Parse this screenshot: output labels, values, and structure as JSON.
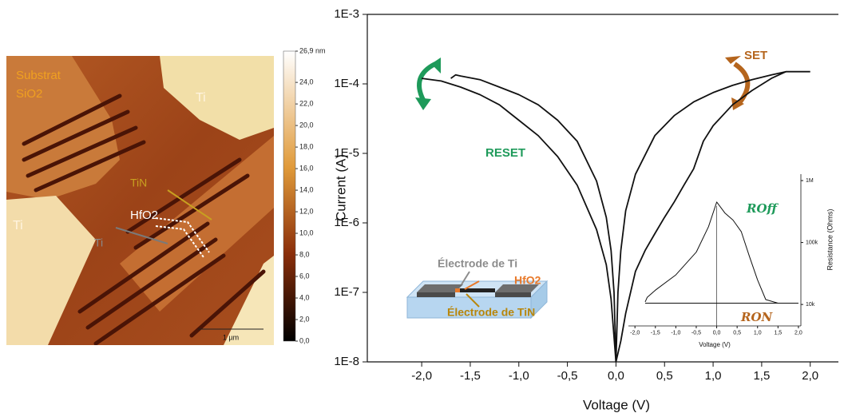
{
  "afm_image": {
    "labels": [
      {
        "text": "Substrat",
        "color": "#f0a020"
      },
      {
        "text": "SiO2",
        "color": "#f0a020"
      },
      {
        "text": "Ti",
        "color": "#fff4e0"
      },
      {
        "text": "Ti",
        "color": "#fff4e0"
      },
      {
        "text": "TiN",
        "color": "#c8a020"
      },
      {
        "text": "HfO2",
        "color": "#ffffff"
      },
      {
        "text": "Ti",
        "color": "#8a8a8a"
      }
    ],
    "scale_bar": "1 µm",
    "colorbar": {
      "lim": [
        0,
        26.9
      ],
      "ticks": [
        {
          "value": 26.9,
          "label": "26,9 nm"
        },
        {
          "value": 24,
          "label": "24,0"
        },
        {
          "value": 22,
          "label": "22,0"
        },
        {
          "value": 20,
          "label": "20,0"
        },
        {
          "value": 18,
          "label": "18,0"
        },
        {
          "value": 16,
          "label": "16,0"
        },
        {
          "value": 14,
          "label": "14,0"
        },
        {
          "value": 12,
          "label": "12,0"
        },
        {
          "value": 10,
          "label": "10,0"
        },
        {
          "value": 8,
          "label": "8,0"
        },
        {
          "value": 6,
          "label": "6,0"
        },
        {
          "value": 4,
          "label": "4,0"
        },
        {
          "value": 2,
          "label": "2,0"
        },
        {
          "value": 0,
          "label": "0,0"
        }
      ]
    }
  },
  "chart_data": [
    {
      "type": "line",
      "xlabel": "Voltage (V)",
      "ylabel": "Current (A)",
      "log_y": true,
      "xlim": [
        -2.56,
        2.29
      ],
      "ylim": [
        1e-08,
        0.001
      ],
      "xticks": [
        {
          "value": -2,
          "label": "-2,0"
        },
        {
          "value": -1.5,
          "label": "-1,5"
        },
        {
          "value": -1,
          "label": "-1,0"
        },
        {
          "value": -0.5,
          "label": "-0,5"
        },
        {
          "value": 0,
          "label": "0,0"
        },
        {
          "value": 0.5,
          "label": "0,5"
        },
        {
          "value": 1,
          "label": "1,0"
        },
        {
          "value": 1.5,
          "label": "1,5"
        },
        {
          "value": 2,
          "label": "2,0"
        }
      ],
      "yticks": [
        {
          "value": 1e-08,
          "label": "1E-8"
        },
        {
          "value": 1e-07,
          "label": "1E-7"
        },
        {
          "value": 1e-06,
          "label": "1E-6"
        },
        {
          "value": 1e-05,
          "label": "1E-5"
        },
        {
          "value": 0.0001,
          "label": "1E-4"
        },
        {
          "value": 0.001,
          "label": "1E-3"
        }
      ],
      "series": [
        {
          "color": "#111111",
          "x": [
            -1.7,
            -1.65,
            -1.6,
            -1.4,
            -1.2,
            -1.0,
            -0.8,
            -0.6,
            -0.4,
            -0.2,
            -0.1,
            -0.05,
            -0.02,
            0
          ],
          "values": [
            0.00012,
            0.000135,
            0.00013,
            0.000115,
            9e-05,
            7e-05,
            5e-05,
            3e-05,
            1.5e-05,
            4e-06,
            1.2e-06,
            4e-07,
            1e-07,
            1e-08
          ]
        },
        {
          "color": "#111111",
          "x": [
            -2.0,
            -1.8,
            -1.6,
            -1.4,
            -1.2,
            -1.0,
            -0.8,
            -0.6,
            -0.4,
            -0.2,
            -0.1,
            -0.05,
            0
          ],
          "values": [
            0.00012,
            0.00011,
            9e-05,
            7e-05,
            5e-05,
            3e-05,
            1.8e-05,
            9e-06,
            3.5e-06,
            8e-07,
            2.5e-07,
            8e-08,
            1e-08
          ]
        },
        {
          "color": "#111111",
          "x": [
            0,
            0.02,
            0.05,
            0.1,
            0.2,
            0.4,
            0.6,
            0.8,
            1.0,
            1.2,
            1.4,
            1.6,
            1.75,
            2.0
          ],
          "values": [
            1e-08,
            1e-07,
            4e-07,
            1.5e-06,
            5e-06,
            1.8e-05,
            3.5e-05,
            5.5e-05,
            7.5e-05,
            9.5e-05,
            0.000115,
            0.000135,
            0.00015,
            0.00015
          ]
        },
        {
          "color": "#111111",
          "x": [
            0,
            0.05,
            0.1,
            0.2,
            0.3,
            0.4,
            0.5,
            0.6,
            0.7,
            0.8,
            0.9,
            1.0,
            1.2,
            1.4,
            1.6,
            1.75
          ],
          "values": [
            1e-08,
            2e-08,
            5e-08,
            2e-07,
            4e-07,
            7e-07,
            1.2e-06,
            2e-06,
            3.5e-06,
            6e-06,
            1.5e-05,
            2.5e-05,
            5e-05,
            8e-05,
            0.00012,
            0.00015
          ]
        }
      ],
      "annotations": [
        {
          "text": "RESET",
          "color": "#1e9a5a"
        },
        {
          "text": "SET",
          "color": "#b5651d"
        },
        {
          "text": "Électrode de Ti",
          "color": "#8c8c8c"
        },
        {
          "text": "HfO2",
          "color": "#e8792a"
        },
        {
          "text": "Électrode de TiN",
          "color": "#b8860b"
        }
      ]
    },
    {
      "type": "line",
      "xlabel": "Voltage (V)",
      "ylabel": "Resistance (Ohms)",
      "log_y": true,
      "xlim": [
        -2.16,
        2.06
      ],
      "ylim": [
        4500,
        1270000
      ],
      "xticks": [
        {
          "value": -2,
          "label": "-2,0"
        },
        {
          "value": -1.5,
          "label": "-1,5"
        },
        {
          "value": -1,
          "label": "-1,0"
        },
        {
          "value": -0.5,
          "label": "-0,5"
        },
        {
          "value": 0,
          "label": "0,0"
        },
        {
          "value": 0.5,
          "label": "0,5"
        },
        {
          "value": 1,
          "label": "1,0"
        },
        {
          "value": 1.5,
          "label": "1,5"
        },
        {
          "value": 2,
          "label": "2,0"
        }
      ],
      "yticks": [
        {
          "value": 10000,
          "label": "10k"
        },
        {
          "value": 100000,
          "label": "100k"
        },
        {
          "value": 1000000,
          "label": "1M"
        }
      ],
      "series": [
        {
          "color": "#111111",
          "x": [
            -1.75,
            -1.7,
            -1.5,
            -1.0,
            -0.5,
            -0.2,
            0.0,
            0.2,
            0.4,
            0.6,
            0.8,
            1.0,
            1.2,
            1.5,
            2.0
          ],
          "values": [
            11000,
            13000,
            17000,
            30000,
            70000,
            180000,
            450000,
            300000,
            230000,
            150000,
            60000,
            25000,
            12000,
            10500,
            10500
          ]
        },
        {
          "color": "#111111",
          "x": [
            -1.75,
            2.0
          ],
          "values": [
            10500,
            10500
          ]
        }
      ],
      "annotations": [
        {
          "text": "ROff",
          "color": "#1e9a5a"
        },
        {
          "text": "RON",
          "color": "#b5651d"
        }
      ]
    }
  ]
}
